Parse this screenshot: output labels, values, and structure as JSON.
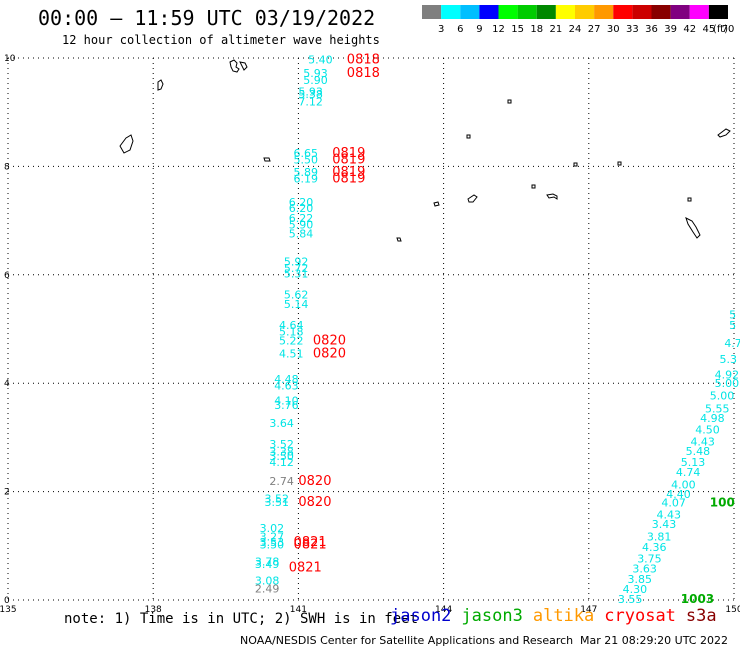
{
  "header": {
    "title": "00:00 – 11:59 UTC 03/19/2022",
    "subtitle": "12 hour collection of altimeter wave heights"
  },
  "colorbar": {
    "colors": [
      "#7f7f7f",
      "#00ffff",
      "#00bfff",
      "#0000ff",
      "#00ff00",
      "#00cc00",
      "#008800",
      "#ffff00",
      "#ffcc00",
      "#ff9900",
      "#ff0000",
      "#cc0000",
      "#880000",
      "#800080",
      "#ff00ff",
      "#000000"
    ],
    "labels": [
      "3",
      "6",
      "9",
      "12",
      "15",
      "18",
      "21",
      "24",
      "27",
      "30",
      "33",
      "36",
      "39",
      "42",
      "45",
      "70"
    ],
    "unit": "(ft)"
  },
  "footer": {
    "note": "note: 1) Time is in UTC; 2) SWH is in feet",
    "satellites": [
      {
        "name": "jason2",
        "color": "#0000cc"
      },
      {
        "name": "jason3",
        "color": "#00aa00"
      },
      {
        "name": "altika",
        "color": "#ff9900"
      },
      {
        "name": "cryosat",
        "color": "#ff0000"
      },
      {
        "name": "s3a",
        "color": "#880000"
      }
    ],
    "credit": "NOAA/NESDIS Center for Satellite Applications and Research",
    "timestamp": "Mar 21 08:29:20 UTC 2022"
  },
  "chart_data": {
    "type": "scatter",
    "title": "00:00 – 11:59 UTC 03/19/2022",
    "xlim": [
      135,
      150
    ],
    "ylim": [
      0,
      10
    ],
    "x_ticks": [
      "135",
      "138",
      "141",
      "144",
      "147",
      "150"
    ],
    "y_ticks": [
      "0",
      "2",
      "4",
      "6",
      "8",
      "10"
    ],
    "grid": true,
    "series": [
      {
        "name": "jason2",
        "color": "#00e5e5",
        "points": [
          {
            "x": 141.2,
            "y": 9.97,
            "label": "5.40"
          },
          {
            "x": 141.1,
            "y": 9.72,
            "label": "5.93"
          },
          {
            "x": 141.1,
            "y": 9.59,
            "label": "5.90"
          },
          {
            "x": 141.0,
            "y": 9.38,
            "label": "5.93"
          },
          {
            "x": 141.0,
            "y": 9.34,
            "label": "5.38"
          },
          {
            "x": 141.0,
            "y": 9.2,
            "label": "7.12"
          },
          {
            "x": 140.9,
            "y": 8.25,
            "label": "6.65"
          },
          {
            "x": 140.9,
            "y": 8.13,
            "label": "5.50"
          },
          {
            "x": 140.9,
            "y": 7.9,
            "label": "5.89"
          },
          {
            "x": 140.9,
            "y": 7.78,
            "label": "6.19"
          },
          {
            "x": 140.8,
            "y": 7.34,
            "label": "6.20"
          },
          {
            "x": 140.8,
            "y": 7.23,
            "label": "6.20"
          },
          {
            "x": 140.8,
            "y": 7.05,
            "label": "6.22"
          },
          {
            "x": 140.8,
            "y": 6.93,
            "label": "5.90"
          },
          {
            "x": 140.8,
            "y": 6.76,
            "label": "5.84"
          },
          {
            "x": 140.7,
            "y": 6.25,
            "label": "5.92"
          },
          {
            "x": 140.7,
            "y": 6.13,
            "label": "5.72"
          },
          {
            "x": 140.7,
            "y": 6.02,
            "label": "5.31"
          },
          {
            "x": 140.7,
            "y": 5.64,
            "label": "5.62"
          },
          {
            "x": 140.7,
            "y": 5.46,
            "label": "5.14"
          },
          {
            "x": 140.6,
            "y": 5.07,
            "label": "4.64"
          },
          {
            "x": 140.6,
            "y": 4.95,
            "label": "5.18"
          },
          {
            "x": 140.6,
            "y": 4.79,
            "label": "5.22"
          },
          {
            "x": 140.6,
            "y": 4.55,
            "label": "4.51"
          },
          {
            "x": 140.5,
            "y": 4.08,
            "label": "4.48"
          },
          {
            "x": 140.5,
            "y": 3.96,
            "label": "4.63"
          },
          {
            "x": 140.5,
            "y": 3.68,
            "label": "4.10"
          },
          {
            "x": 140.5,
            "y": 3.6,
            "label": "3.76"
          },
          {
            "x": 140.4,
            "y": 3.27,
            "label": "3.64"
          },
          {
            "x": 140.4,
            "y": 2.88,
            "label": "3.52"
          },
          {
            "x": 140.4,
            "y": 2.74,
            "label": "3.38"
          },
          {
            "x": 140.4,
            "y": 2.66,
            "label": "3.50"
          },
          {
            "x": 140.4,
            "y": 2.55,
            "label": "4.12"
          },
          {
            "x": 140.3,
            "y": 1.87,
            "label": "3.52"
          },
          {
            "x": 140.3,
            "y": 1.81,
            "label": "3.51"
          },
          {
            "x": 140.2,
            "y": 1.33,
            "label": "3.02"
          },
          {
            "x": 140.2,
            "y": 1.17,
            "label": "3.27"
          },
          {
            "x": 140.2,
            "y": 1.07,
            "label": "3.53"
          },
          {
            "x": 140.2,
            "y": 1.02,
            "label": "3.50"
          },
          {
            "x": 140.1,
            "y": 0.71,
            "label": "3.78"
          },
          {
            "x": 140.1,
            "y": 0.66,
            "label": "3.49"
          },
          {
            "x": 140.1,
            "y": 0.36,
            "label": "3.08"
          }
        ]
      },
      {
        "name": "jason2-gray",
        "color": "#808080",
        "points": [
          {
            "x": 140.4,
            "y": 2.2,
            "label": "2.74"
          },
          {
            "x": 140.1,
            "y": 0.21,
            "label": "2.49"
          }
        ]
      },
      {
        "name": "jason2-east",
        "color": "#00e5e5",
        "points": [
          {
            "x": 149.9,
            "y": 5.27,
            "label": "5"
          },
          {
            "x": 149.9,
            "y": 5.07,
            "label": "5"
          },
          {
            "x": 149.8,
            "y": 4.74,
            "label": "4.7"
          },
          {
            "x": 149.7,
            "y": 4.45,
            "label": "5.3"
          },
          {
            "x": 149.6,
            "y": 4.16,
            "label": "4.92"
          },
          {
            "x": 149.6,
            "y": 4.0,
            "label": "5.00"
          },
          {
            "x": 149.5,
            "y": 3.77,
            "label": "5.00"
          },
          {
            "x": 149.4,
            "y": 3.53,
            "label": "5.55"
          },
          {
            "x": 149.3,
            "y": 3.36,
            "label": "4.98"
          },
          {
            "x": 149.2,
            "y": 3.15,
            "label": "4.50"
          },
          {
            "x": 149.1,
            "y": 2.92,
            "label": "4.43"
          },
          {
            "x": 149.0,
            "y": 2.75,
            "label": "5.48"
          },
          {
            "x": 148.9,
            "y": 2.55,
            "label": "5.13"
          },
          {
            "x": 148.8,
            "y": 2.36,
            "label": "4.74"
          },
          {
            "x": 148.7,
            "y": 2.13,
            "label": "4.00"
          },
          {
            "x": 148.6,
            "y": 1.96,
            "label": "4.40"
          },
          {
            "x": 148.5,
            "y": 1.8,
            "label": "4.07"
          },
          {
            "x": 148.4,
            "y": 1.58,
            "label": "4.43"
          },
          {
            "x": 148.3,
            "y": 1.4,
            "label": "3.43"
          },
          {
            "x": 148.2,
            "y": 1.17,
            "label": "3.81"
          },
          {
            "x": 148.1,
            "y": 0.98,
            "label": "4.36"
          },
          {
            "x": 148.0,
            "y": 0.77,
            "label": "3.75"
          },
          {
            "x": 147.9,
            "y": 0.58,
            "label": "3.63"
          },
          {
            "x": 147.8,
            "y": 0.39,
            "label": "3.85"
          },
          {
            "x": 147.7,
            "y": 0.2,
            "label": "4.30"
          },
          {
            "x": 147.6,
            "y": 0.02,
            "label": "3.55"
          }
        ]
      },
      {
        "name": "cryosat",
        "color": "#ff0000",
        "points": [
          {
            "x": 142.0,
            "y": 9.97,
            "label": "0818"
          },
          {
            "x": 142.0,
            "y": 9.72,
            "label": "0818"
          },
          {
            "x": 141.7,
            "y": 8.25,
            "label": "0819"
          },
          {
            "x": 141.7,
            "y": 8.13,
            "label": "0819"
          },
          {
            "x": 141.7,
            "y": 7.9,
            "label": "0819"
          },
          {
            "x": 141.7,
            "y": 7.78,
            "label": "0819"
          },
          {
            "x": 141.3,
            "y": 4.79,
            "label": "0820"
          },
          {
            "x": 141.3,
            "y": 4.55,
            "label": "0820"
          },
          {
            "x": 141.0,
            "y": 2.2,
            "label": "0820"
          },
          {
            "x": 141.0,
            "y": 1.81,
            "label": "0820"
          },
          {
            "x": 140.9,
            "y": 1.07,
            "label": "0821"
          },
          {
            "x": 140.9,
            "y": 1.02,
            "label": "0821"
          },
          {
            "x": 140.8,
            "y": 0.6,
            "label": "0821"
          }
        ]
      },
      {
        "name": "jason3",
        "color": "#00aa00",
        "points": [
          {
            "x": 149.5,
            "y": 1.8,
            "label": "100"
          },
          {
            "x": 148.9,
            "y": 0.02,
            "label": "1003"
          }
        ]
      }
    ]
  }
}
